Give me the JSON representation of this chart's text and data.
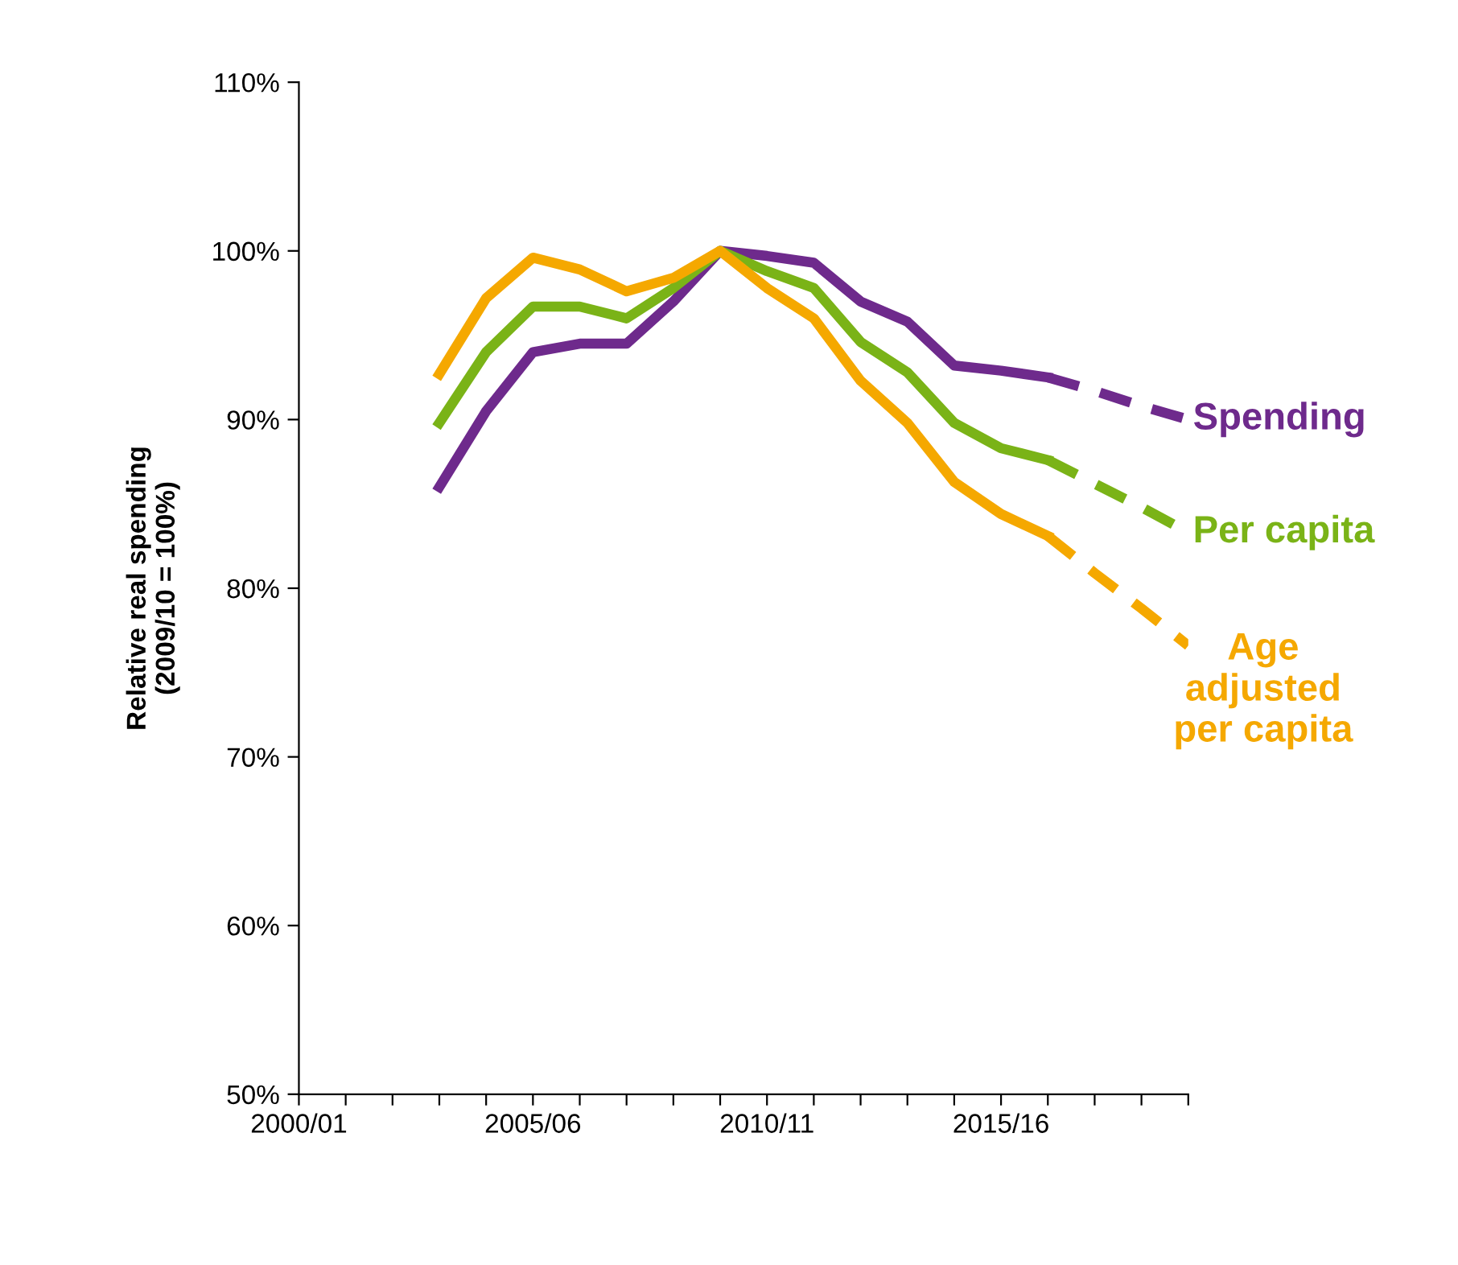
{
  "chart_data": {
    "type": "line",
    "ylabel": "Relative real spending\n(2009/10 = 100%)",
    "categories": [
      "2000/01",
      null,
      null,
      null,
      null,
      "2005/06",
      null,
      null,
      null,
      null,
      "2010/11",
      null,
      null,
      null,
      null,
      "2015/16",
      null,
      null,
      null,
      null
    ],
    "ylim": [
      50,
      110
    ],
    "yticks": [
      {
        "value": 50,
        "label": "50%"
      },
      {
        "value": 60,
        "label": "60%"
      },
      {
        "value": 70,
        "label": "70%"
      },
      {
        "value": 80,
        "label": "80%"
      },
      {
        "value": 90,
        "label": "90%"
      },
      {
        "value": 100,
        "label": "100%"
      },
      {
        "value": 110,
        "label": "110%"
      }
    ],
    "grid": false,
    "legend": false,
    "marker": "none",
    "series": [
      {
        "color": "#6e2a8c",
        "line_style": "solid",
        "values": [
          null,
          null,
          null,
          86.0,
          90.5,
          94.0,
          94.5,
          94.5,
          97.0,
          100,
          99.7,
          99.3,
          97.0,
          95.8,
          93.2,
          92.9,
          92.5,
          null,
          null,
          null
        ]
      },
      {
        "color": "#7ab317",
        "line_style": "solid",
        "values": [
          null,
          null,
          null,
          89.8,
          94.0,
          96.7,
          96.7,
          96.0,
          97.8,
          100,
          98.8,
          97.8,
          94.6,
          92.8,
          89.8,
          88.3,
          87.6,
          null,
          null,
          null
        ]
      },
      {
        "color": "#f5a800",
        "line_style": "solid",
        "values": [
          null,
          null,
          null,
          92.7,
          97.2,
          99.6,
          98.9,
          97.6,
          98.4,
          100,
          97.8,
          96.0,
          92.3,
          89.8,
          86.3,
          84.4,
          83.1,
          null,
          null,
          null
        ]
      },
      {
        "name": "Spending",
        "color": "#6e2a8c",
        "line_style": "dashed",
        "values": [
          null,
          null,
          null,
          null,
          null,
          null,
          null,
          null,
          null,
          null,
          null,
          null,
          null,
          null,
          null,
          null,
          92.5,
          91.7,
          90.8,
          90.0
        ]
      },
      {
        "name": "Per capita",
        "color": "#7ab317",
        "line_style": "dashed",
        "values": [
          null,
          null,
          null,
          null,
          null,
          null,
          null,
          null,
          null,
          null,
          null,
          null,
          null,
          null,
          null,
          null,
          87.6,
          86.2,
          84.8,
          83.3
        ]
      },
      {
        "name": "Age\nadjusted\nper capita",
        "color": "#f5a800",
        "line_style": "dashed",
        "values": [
          null,
          null,
          null,
          null,
          null,
          null,
          null,
          null,
          null,
          null,
          null,
          null,
          null,
          null,
          null,
          null,
          83.1,
          80.9,
          78.8,
          76.6
        ]
      }
    ]
  }
}
